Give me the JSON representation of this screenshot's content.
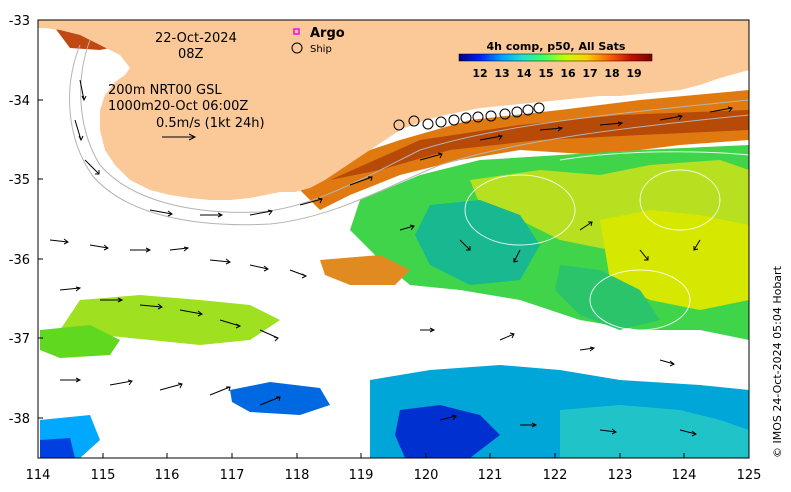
{
  "map": {
    "date": "22-Oct-2024",
    "hour": "08Z",
    "legend": {
      "argo_label": "Argo",
      "ship_label": "Ship",
      "argo_color": "#ff00ff"
    },
    "contours": {
      "line1": "200m  NRT00 GSL",
      "line2": "1000m20-Oct 06:00Z"
    },
    "scale_label": "0.5m/s (1kt 24h)",
    "colorbar": {
      "title": "4h comp, p50, All Sats",
      "ticks": [
        "12",
        "13",
        "14",
        "15",
        "16",
        "17",
        "18",
        "19"
      ],
      "colors": [
        "#00007f",
        "#0020ff",
        "#00a0ff",
        "#20e0d0",
        "#40ff60",
        "#c0ff00",
        "#ffd000",
        "#ff6000",
        "#c01000",
        "#800000"
      ]
    },
    "x_axis_ticks": [
      "114",
      "115",
      "116",
      "117",
      "118",
      "119",
      "120",
      "121",
      "122",
      "123",
      "124",
      "125"
    ],
    "y_axis_ticks": [
      "-33",
      "-34",
      "-35",
      "-36",
      "-37",
      "-38"
    ],
    "credit": "© IMOS 24-Oct-2024 05:04 Hobart",
    "colors": {
      "land": "#fbc897",
      "ocean_nodata": "#ffffff",
      "contour": "#b4b4b4"
    }
  }
}
